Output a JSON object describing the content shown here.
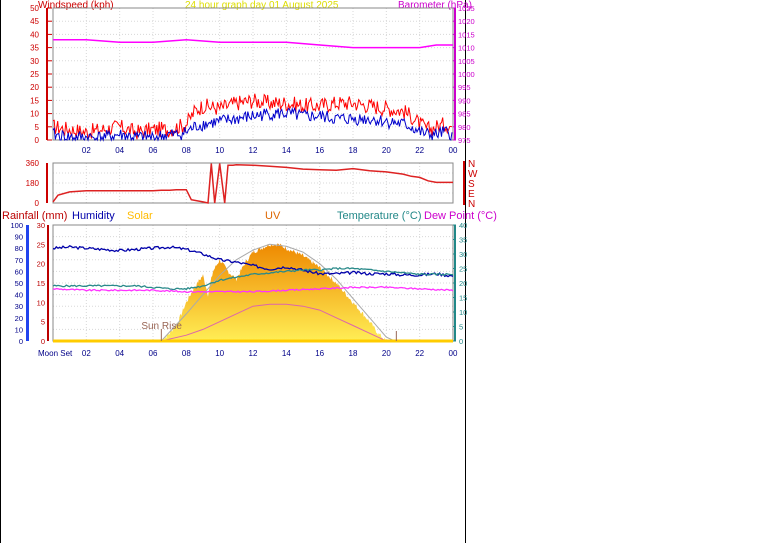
{
  "title": "24 hour graph day  01 August  2025",
  "colors": {
    "wind_gust": "#ff0000",
    "wind_avg": "#0000cc",
    "barometer": "#ff00ff",
    "direction": "#dd2222",
    "humidity": "#0000aa",
    "temperature": "#2a8a8a",
    "dewpoint": "#ff33ff",
    "solar": "#ffa500",
    "rain": "#bb0000",
    "uv": "#dd5500",
    "axis_wind": "#cc0000",
    "axis_baro": "#cc00cc",
    "axis_temp": "#228888",
    "axis_time": "#000088"
  },
  "chart_data": [
    {
      "type": "line",
      "id": "wind-baro",
      "left_axis_label": "Windspeed (kph)",
      "right_axis_label": "Barometer (hPa)",
      "yticks_left": [
        "0",
        "5",
        "10",
        "15",
        "20",
        "25",
        "30",
        "35",
        "40",
        "45",
        "50"
      ],
      "yticks_right": [
        "975",
        "980",
        "985",
        "990",
        "995",
        "1000",
        "1005",
        "1010",
        "1015",
        "1020",
        "1025"
      ],
      "ylim_left": [
        0,
        50
      ],
      "ylim_right": [
        975,
        1025
      ],
      "xticks": [
        "02",
        "04",
        "06",
        "08",
        "10",
        "12",
        "14",
        "16",
        "18",
        "20",
        "22",
        "00"
      ],
      "x_hours": [
        0,
        24
      ],
      "series": [
        {
          "name": "Gust",
          "x": [
            0,
            1,
            2,
            3,
            4,
            5,
            6,
            7,
            7.5,
            8,
            8.5,
            9,
            10,
            11,
            12,
            13,
            14,
            15,
            16,
            17,
            18,
            19,
            20,
            21,
            21.5,
            22,
            22.5,
            23,
            23.5,
            24
          ],
          "values": [
            5,
            4,
            3,
            4,
            5,
            3,
            4,
            4,
            5,
            6,
            11,
            13,
            12,
            14,
            15,
            14,
            14,
            13,
            13,
            14,
            14,
            13,
            12,
            11,
            9,
            6,
            4,
            5,
            6,
            5
          ]
        },
        {
          "name": "Average",
          "x": [
            0,
            1,
            2,
            3,
            4,
            5,
            6,
            7,
            7.5,
            8,
            8.5,
            9,
            10,
            11,
            12,
            13,
            14,
            15,
            16,
            17,
            18,
            19,
            20,
            21,
            21.5,
            22,
            22.5,
            23,
            23.5,
            24
          ],
          "values": [
            2,
            1,
            1,
            1,
            2,
            1,
            1,
            2,
            2,
            3,
            5,
            6,
            7,
            8,
            9,
            10,
            10,
            9,
            9,
            8,
            8,
            8,
            7,
            6,
            5,
            3,
            2,
            2,
            3,
            2
          ]
        },
        {
          "name": "Barometer",
          "x": [
            0,
            2,
            4,
            6,
            8,
            10,
            12,
            14,
            16,
            18,
            20,
            22,
            23,
            24
          ],
          "values": [
            1013,
            1013,
            1012,
            1012,
            1013,
            1012,
            1012,
            1012,
            1011,
            1010,
            1010,
            1010,
            1011,
            1011
          ]
        }
      ]
    },
    {
      "type": "line",
      "id": "direction",
      "yticks": [
        "0",
        "90",
        "180",
        "270",
        "360"
      ],
      "ylim": [
        0,
        360
      ],
      "compass_labels": [
        "N",
        "W",
        "S",
        "E",
        "N"
      ],
      "x": [
        0,
        0.3,
        1,
        2,
        3,
        4,
        5,
        6,
        6.5,
        7,
        7.4,
        8,
        8.3,
        9,
        9.3,
        9.5,
        9.7,
        10,
        10.3,
        10.5,
        10.8,
        11,
        12,
        13,
        14,
        15,
        16,
        17,
        18,
        19,
        20,
        21,
        21.5,
        22,
        22.5,
        23,
        24
      ],
      "values": [
        10,
        70,
        100,
        110,
        110,
        110,
        110,
        110,
        115,
        115,
        120,
        120,
        30,
        10,
        0,
        355,
        0,
        355,
        0,
        340,
        340,
        345,
        340,
        330,
        320,
        305,
        300,
        295,
        310,
        290,
        280,
        260,
        240,
        230,
        200,
        185,
        185
      ]
    },
    {
      "type": "area",
      "id": "rain-hum-solar-temp",
      "legend": [
        "Rainfall (mm)",
        "Humidity",
        "Solar",
        "UV",
        "Temperature (°C)",
        "Dew Point (°C)"
      ],
      "yticks_rain": [
        "0",
        "5",
        "10",
        "15",
        "20",
        "25",
        "30"
      ],
      "yticks_hum": [
        "0",
        "10",
        "20",
        "30",
        "40",
        "50",
        "60",
        "70",
        "80",
        "90",
        "100"
      ],
      "yticks_temp": [
        "0",
        "5",
        "10",
        "15",
        "20",
        "25",
        "30",
        "35",
        "40"
      ],
      "xticks": [
        "02",
        "04",
        "06",
        "08",
        "10",
        "12",
        "14",
        "16",
        "18",
        "20",
        "22",
        "00"
      ],
      "annotations": {
        "sun_rise": "Sun Rise",
        "moon_set": "Moon Set"
      },
      "humidity": {
        "x": [
          0,
          1,
          2,
          3,
          4,
          5,
          6,
          7,
          8,
          9,
          10,
          11,
          12,
          13,
          14,
          15,
          16,
          17,
          18,
          19,
          20,
          21,
          22,
          23,
          24
        ],
        "values": [
          80,
          81,
          80,
          79,
          78,
          79,
          80,
          81,
          79,
          75,
          70,
          68,
          65,
          62,
          64,
          61,
          58,
          58,
          59,
          58,
          58,
          57,
          57,
          58,
          56
        ]
      },
      "temperature": {
        "x": [
          0,
          1,
          2,
          3,
          4,
          5,
          6,
          7,
          8,
          9,
          10,
          11,
          12,
          13,
          14,
          15,
          16,
          17,
          18,
          19,
          20,
          21,
          22,
          23,
          24
        ],
        "values": [
          19,
          19,
          19,
          19,
          19,
          19,
          18.5,
          18,
          18,
          19,
          21,
          22,
          23,
          23.5,
          24,
          24.5,
          24.5,
          25,
          25,
          24.5,
          24,
          23.5,
          23,
          23,
          23
        ]
      },
      "dewpoint": {
        "x": [
          0,
          2,
          4,
          6,
          8,
          10,
          12,
          14,
          16,
          18,
          20,
          22,
          24
        ],
        "values": [
          18,
          17.5,
          17.5,
          17.5,
          17,
          17,
          17,
          17.5,
          18,
          18.5,
          18.5,
          18,
          17.5
        ]
      },
      "solar": {
        "x": [
          6.5,
          7,
          7.5,
          8,
          8.5,
          9,
          9.3,
          9.6,
          10,
          10.5,
          11,
          11.5,
          12,
          12.5,
          13,
          13.5,
          14,
          14.5,
          15,
          16,
          17,
          18,
          19,
          19.5,
          20,
          20.5
        ],
        "values": [
          0,
          2,
          5,
          10,
          14,
          17,
          12,
          18,
          21,
          18,
          16,
          20,
          23,
          24,
          25,
          25,
          24,
          23,
          22,
          19,
          15,
          10,
          5,
          2,
          0,
          0
        ]
      },
      "solar_max": {
        "x": [
          6.5,
          8,
          9,
          10,
          11,
          12,
          13,
          14,
          15,
          16,
          17,
          18,
          19,
          20,
          20.5
        ],
        "values": [
          0,
          7,
          12,
          17,
          21,
          23.5,
          25,
          24.5,
          23,
          20,
          16,
          11,
          6,
          1,
          0
        ]
      },
      "uv": {
        "x": [
          6.5,
          8,
          9,
          10,
          11,
          12,
          13,
          14,
          15,
          16,
          17,
          18,
          19,
          20
        ],
        "values": [
          0,
          1.5,
          3,
          5,
          7,
          9,
          9.5,
          9.5,
          9,
          8,
          6,
          4,
          2,
          0
        ]
      }
    }
  ]
}
